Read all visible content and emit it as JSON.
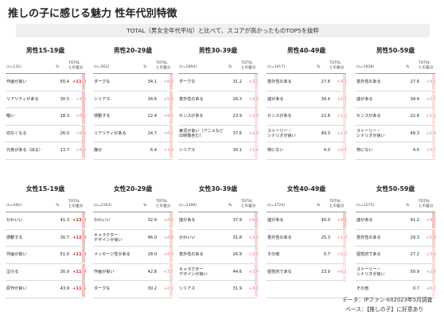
{
  "title": "推しの子に感じる魅力 性年代別特徴",
  "subtitle": "TOTAL（男女全年代平均）と比べて、スコアが高かったものTOP5を抜粋",
  "colors": {
    "red_high": "#e8231b",
    "red_mid": "#ee7b75",
    "bar": "#f2c4c1",
    "gray": "#555555"
  },
  "chart_data": {
    "type": "table",
    "column_headers": {
      "pct": "%",
      "diff": "TOTAL\nとの差分"
    },
    "panels": [
      {
        "segment": "男性15-19歳",
        "n": "(n=131)",
        "rows": [
          {
            "label": "作画が良い",
            "pct": "50.4",
            "diff": "+11.3",
            "level": "high",
            "value": 50.4,
            "delta": 11.3
          },
          {
            "label": "リアリティがある",
            "pct": "30.5",
            "diff": "+9.9",
            "level": "mid",
            "value": 30.5,
            "delta": 9.9
          },
          {
            "label": "暗い",
            "pct": "18.3",
            "diff": "+8.4",
            "level": "mid",
            "value": 18.3,
            "delta": 8.4
          },
          {
            "label": "切なくなる",
            "pct": "26.0",
            "diff": "+6.8",
            "level": "mid",
            "value": 26.0,
            "delta": 6.8
          },
          {
            "label": "元気がある（出る）",
            "pct": "13.7",
            "diff": "+6.6",
            "level": "mid",
            "value": 13.7,
            "delta": 6.6
          }
        ]
      },
      {
        "segment": "男性20-29歳",
        "n": "(n=563)",
        "rows": [
          {
            "label": "ダークな",
            "pct": "34.1",
            "diff": "+6.0",
            "level": "mid",
            "value": 34.1,
            "delta": 6.0
          },
          {
            "label": "シリアス",
            "pct": "34.6",
            "diff": "+5.9",
            "level": "mid",
            "value": 34.6,
            "delta": 5.9
          },
          {
            "label": "感動する",
            "pct": "22.4",
            "diff": "+4.5",
            "level": "mid",
            "value": 22.4,
            "delta": 4.5
          },
          {
            "label": "リアリティがある",
            "pct": "24.7",
            "diff": "+4.1",
            "level": "mid",
            "value": 24.7,
            "delta": 4.1
          },
          {
            "label": "静か",
            "pct": "6.4",
            "diff": "+3.8",
            "level": "mid",
            "value": 6.4,
            "delta": 3.8
          }
        ]
      },
      {
        "segment": "男性30-39歳",
        "n": "(n=1694)",
        "rows": [
          {
            "label": "ダークな",
            "pct": "31.2",
            "diff": "+3.1",
            "level": "mid",
            "value": 31.2,
            "delta": 3.1
          },
          {
            "label": "意外性のある",
            "pct": "26.3",
            "diff": "+2.9",
            "level": "mid",
            "value": 26.3,
            "delta": 2.9
          },
          {
            "label": "センスがある",
            "pct": "23.9",
            "diff": "+2.3",
            "level": "mid",
            "value": 23.9,
            "delta": 2.3
          },
          {
            "label": "実況が良い（アニメなどの映像含む）",
            "pct": "37.6",
            "diff": "+2.0",
            "level": "mid",
            "value": 37.6,
            "delta": 2.0
          },
          {
            "label": "シリアス",
            "pct": "30.1",
            "diff": "+1.4",
            "level": "mid",
            "value": 30.1,
            "delta": 1.4
          }
        ]
      },
      {
        "segment": "男性40-49歳",
        "n": "(n=3417)",
        "rows": [
          {
            "label": "意外性のある",
            "pct": "27.6",
            "diff": "+4.2",
            "level": "mid",
            "value": 27.6,
            "delta": 4.2
          },
          {
            "label": "謎がある",
            "pct": "34.4",
            "diff": "+2.7",
            "level": "mid",
            "value": 34.4,
            "delta": 2.7
          },
          {
            "label": "センスがある",
            "pct": "22.8",
            "diff": "+1.2",
            "level": "mid",
            "value": 22.8,
            "delta": 1.2
          },
          {
            "label": "ストーリー・\nシナリオが良い",
            "pct": "49.3",
            "diff": "+1.0",
            "level": "mid",
            "value": 49.3,
            "delta": 1.0
          },
          {
            "label": "特にない",
            "pct": "4.0",
            "diff": "+0.7",
            "level": "mid",
            "value": 4.0,
            "delta": 0.7
          }
        ]
      },
      {
        "segment": "男性50-59歳",
        "n": "(n=1938)",
        "rows": [
          {
            "label": "意外性のある",
            "pct": "27.6",
            "diff": "+4.2",
            "level": "mid",
            "value": 27.6,
            "delta": 4.2
          },
          {
            "label": "謎がある",
            "pct": "34.4",
            "diff": "+2.7",
            "level": "mid",
            "value": 34.4,
            "delta": 2.7
          },
          {
            "label": "センスがある",
            "pct": "22.8",
            "diff": "+1.2",
            "level": "mid",
            "value": 22.8,
            "delta": 1.2
          },
          {
            "label": "ストーリー・\nシナリオが良い",
            "pct": "49.3",
            "diff": "+1.0",
            "level": "mid",
            "value": 49.3,
            "delta": 1.0
          },
          {
            "label": "特にない",
            "pct": "4.0",
            "diff": "+0.7",
            "level": "mid",
            "value": 4.0,
            "delta": 0.7
          }
        ]
      },
      {
        "segment": "女性15-19歳",
        "n": "(n=492)",
        "rows": [
          {
            "label": "かわいい",
            "pct": "41.3",
            "diff": "+13.3",
            "level": "high",
            "value": 41.3,
            "delta": 13.3
          },
          {
            "label": "感動する",
            "pct": "30.7",
            "diff": "+12.8",
            "level": "high",
            "value": 30.7,
            "delta": 12.8
          },
          {
            "label": "作画が良い",
            "pct": "51.0",
            "diff": "+11.9",
            "level": "high",
            "value": 51.0,
            "delta": 11.9
          },
          {
            "label": "泣ける",
            "pct": "30.9",
            "diff": "+11.8",
            "level": "high",
            "value": 30.9,
            "delta": 11.8
          },
          {
            "label": "原作が良い",
            "pct": "43.9",
            "diff": "+11.5",
            "level": "high",
            "value": 43.9,
            "delta": 11.5
          }
        ]
      },
      {
        "segment": "女性20-29歳",
        "n": "(n=2163)",
        "rows": [
          {
            "label": "かわいい",
            "pct": "32.9",
            "diff": "+4.9",
            "level": "mid",
            "value": 32.9,
            "delta": 4.9
          },
          {
            "label": "キャラクター\nデザインが良い",
            "pct": "46.0",
            "diff": "+4.8",
            "level": "mid",
            "value": 46.0,
            "delta": 4.8
          },
          {
            "label": "メッセージ性がある",
            "pct": "28.0",
            "diff": "+4.0",
            "level": "mid",
            "value": 28.0,
            "delta": 4.0
          },
          {
            "label": "作画が良い",
            "pct": "42.8",
            "diff": "+3.7",
            "level": "mid",
            "value": 42.8,
            "delta": 3.7
          },
          {
            "label": "ダークな",
            "pct": "30.2",
            "diff": "+2.1",
            "level": "mid",
            "value": 30.2,
            "delta": 2.1
          }
        ]
      },
      {
        "segment": "女性30-39歳",
        "n": "(n=3399)",
        "rows": [
          {
            "label": "謎がある",
            "pct": "37.9",
            "diff": "+6.2",
            "level": "mid",
            "value": 37.9,
            "delta": 6.2
          },
          {
            "label": "かわいい",
            "pct": "31.8",
            "diff": "+3.8",
            "level": "mid",
            "value": 31.8,
            "delta": 3.8
          },
          {
            "label": "意外性のある",
            "pct": "26.9",
            "diff": "+3.5",
            "level": "mid",
            "value": 26.9,
            "delta": 3.5
          },
          {
            "label": "キャラクター\nデザインが良い",
            "pct": "44.6",
            "diff": "+3.4",
            "level": "mid",
            "value": 44.6,
            "delta": 3.4
          },
          {
            "label": "シリアス",
            "pct": "31.9",
            "diff": "+3.2",
            "level": "mid",
            "value": 31.9,
            "delta": 3.2
          }
        ]
      },
      {
        "segment": "女性40-49歳",
        "n": "(n=3724)",
        "rows": [
          {
            "label": "謎がある",
            "pct": "40.0",
            "diff": "+8.3",
            "level": "mid",
            "value": 40.0,
            "delta": 8.3
          },
          {
            "label": "意外性のある",
            "pct": "25.3",
            "diff": "+1.9",
            "level": "mid",
            "value": 25.3,
            "delta": 1.9
          },
          {
            "label": "その他",
            "pct": "0.7",
            "diff": "+0.2",
            "level": "mid",
            "value": 0.7,
            "delta": 0.2
          },
          {
            "label": "個性的である",
            "pct": "23.9",
            "diff": "+0.1",
            "level": "mid",
            "value": 23.9,
            "delta": 0.1
          },
          {
            "label": "",
            "pct": "",
            "diff": "",
            "level": "mid",
            "value": 0,
            "delta": 0
          }
        ]
      },
      {
        "segment": "女性50-59歳",
        "n": "(n=1275)",
        "rows": [
          {
            "label": "謎がある",
            "pct": "41.2",
            "diff": "+9.5",
            "level": "mid",
            "value": 41.2,
            "delta": 9.5
          },
          {
            "label": "意外性のある",
            "pct": "29.3",
            "diff": "+5.9",
            "level": "mid",
            "value": 29.3,
            "delta": 5.9
          },
          {
            "label": "個性的である",
            "pct": "27.2",
            "diff": "+3.4",
            "level": "mid",
            "value": 27.2,
            "delta": 3.4
          },
          {
            "label": "ストーリー・\nシナリオが良い",
            "pct": "50.9",
            "diff": "+2.6",
            "level": "mid",
            "value": 50.9,
            "delta": 2.6
          },
          {
            "label": "その他",
            "pct": "0.7",
            "diff": "+0.2",
            "level": "mid",
            "value": 0.7,
            "delta": 0.2
          }
        ]
      }
    ]
  },
  "footer": {
    "data_source": "データ：IPファン-kit2023年5月調査",
    "base": "ベース：【推しの子】に好意あり"
  }
}
